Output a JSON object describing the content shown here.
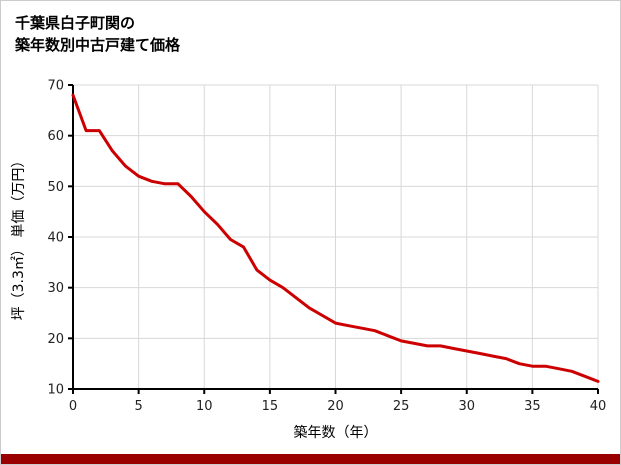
{
  "title": {
    "line1": "千葉県白子町関の",
    "line2": "築年数別中古戸建て価格"
  },
  "chart_data": {
    "type": "line",
    "title": "千葉県白子町関の築年数別中古戸建て価格",
    "xlabel": "築年数（年）",
    "ylabel": "坪（3.3㎡） 単価（万円）",
    "x": [
      0,
      1,
      2,
      3,
      4,
      5,
      6,
      7,
      8,
      9,
      10,
      11,
      12,
      13,
      14,
      15,
      16,
      17,
      18,
      19,
      20,
      21,
      22,
      23,
      24,
      25,
      26,
      27,
      28,
      29,
      30,
      31,
      32,
      33,
      34,
      35,
      36,
      37,
      38,
      39,
      40
    ],
    "values": [
      68,
      61,
      61,
      57,
      54,
      52,
      51,
      50.5,
      50.5,
      48,
      45,
      42.5,
      39.5,
      38,
      33.5,
      31.5,
      30,
      28,
      26,
      24.5,
      23,
      22.5,
      22,
      21.5,
      20.5,
      19.5,
      19,
      18.5,
      18.5,
      18,
      17.5,
      17,
      16.5,
      16,
      15,
      14.5,
      14.5,
      14,
      13.5,
      12.5,
      11.5
    ],
    "xlim": [
      0,
      40
    ],
    "ylim": [
      10,
      70
    ],
    "xticks": [
      0,
      5,
      10,
      15,
      20,
      25,
      30,
      35,
      40
    ],
    "yticks": [
      10,
      20,
      30,
      40,
      50,
      60,
      70
    ],
    "grid": true,
    "legend": "none",
    "line_color": "#cc0000",
    "grid_color": "#d8d8d8",
    "axis_color": "#000000",
    "tick_label_color": "#222222"
  },
  "footer": {
    "bar_color": "#990000"
  }
}
